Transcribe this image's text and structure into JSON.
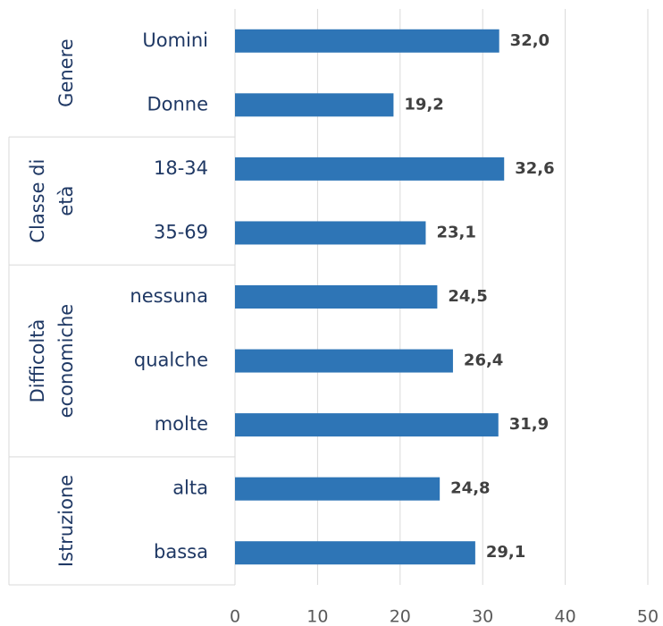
{
  "chart_data": {
    "type": "bar",
    "orientation": "horizontal",
    "color": "#2e75b6",
    "xlim": [
      0,
      50
    ],
    "xticks": [
      0,
      10,
      20,
      30,
      40,
      50
    ],
    "grid": true,
    "groups": [
      {
        "label": [
          "Genere"
        ],
        "categories": [
          "Uomini",
          "Donne"
        ],
        "values": [
          32.0,
          19.2
        ],
        "value_labels": [
          "32,0",
          "19,2"
        ]
      },
      {
        "label": [
          "Classe di",
          "età"
        ],
        "categories": [
          "18-34",
          "35-69"
        ],
        "values": [
          32.6,
          23.1
        ],
        "value_labels": [
          "32,6",
          "23,1"
        ]
      },
      {
        "label": [
          "Difficoltà",
          "economiche"
        ],
        "categories": [
          "nessuna",
          "qualche",
          "molte"
        ],
        "values": [
          24.5,
          26.4,
          31.9
        ],
        "value_labels": [
          "24,5",
          "26,4",
          "31,9"
        ]
      },
      {
        "label": [
          "Istruzione"
        ],
        "categories": [
          "alta",
          "bassa"
        ],
        "values": [
          24.8,
          29.1
        ],
        "value_labels": [
          "24,8",
          "29,1"
        ]
      }
    ]
  }
}
